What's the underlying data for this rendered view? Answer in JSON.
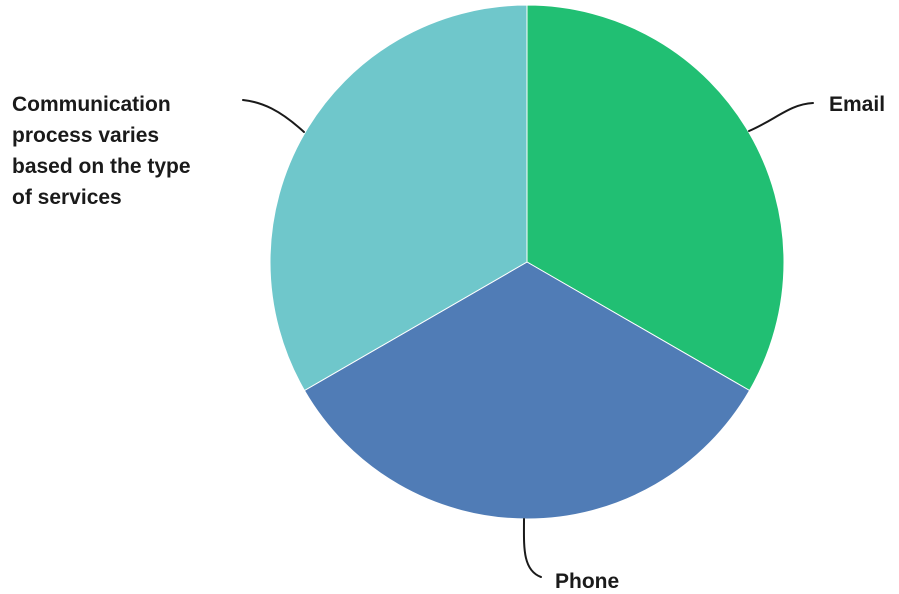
{
  "chart_data": {
    "type": "pie",
    "title": "",
    "categories": [
      "Email",
      "Phone",
      "Communication process varies based on the type of services"
    ],
    "values": [
      33.3,
      33.3,
      33.3
    ],
    "colors": [
      "#21bf73",
      "#507cb6",
      "#6fc7cb"
    ],
    "label_lines": [
      [
        "Email"
      ],
      [
        "Phone"
      ],
      [
        "Communication",
        "process varies",
        "based on the type",
        "of services"
      ]
    ],
    "legend": "none"
  }
}
